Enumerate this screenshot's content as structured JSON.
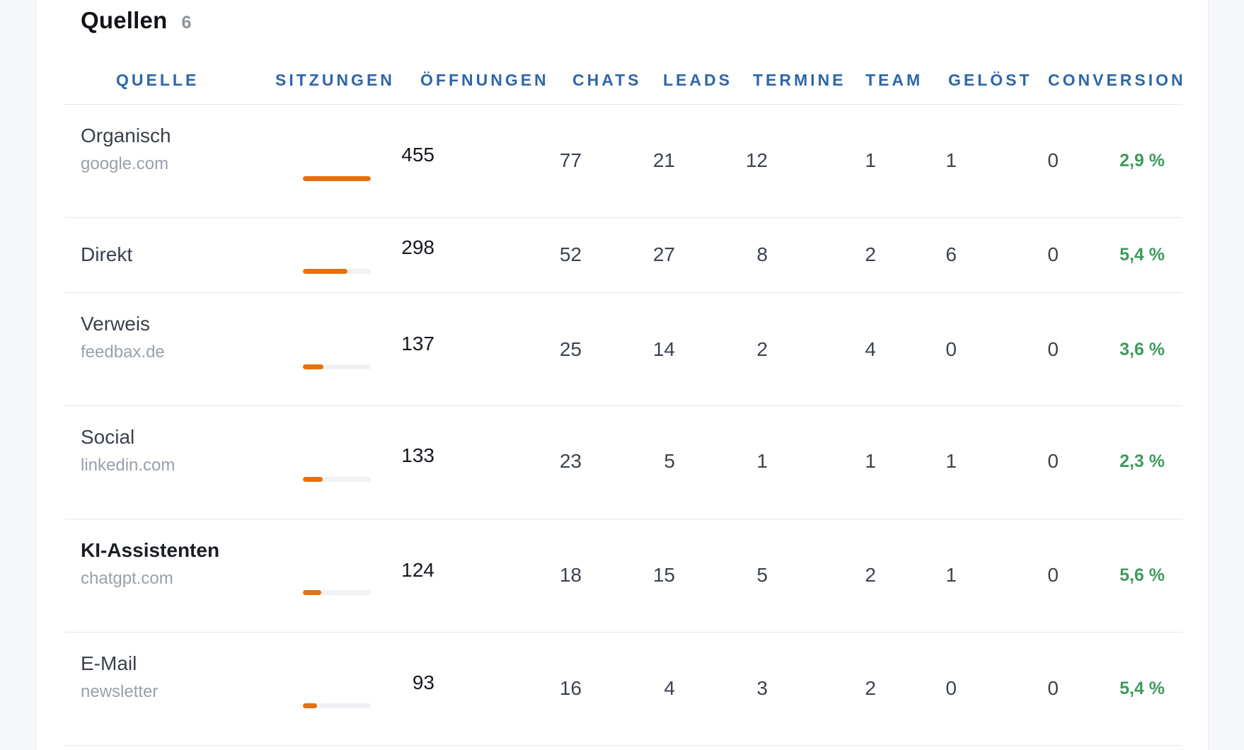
{
  "section": {
    "title": "Quellen",
    "count": "6"
  },
  "columns": [
    "QUELLE",
    "SITZUNGEN",
    "ÖFFNUNGEN",
    "CHATS",
    "LEADS",
    "TERMINE",
    "TEAM",
    "GELÖST",
    "CONVERSION"
  ],
  "colors": {
    "header": "#2f66a8",
    "bar": "#e5700d",
    "conversion": "#3f9a5e"
  },
  "rows": [
    {
      "name": "Organisch",
      "sub": "google.com",
      "sessions": "455",
      "session_share": 1.0,
      "oeffnungen": "77",
      "chats": "21",
      "leads": "12",
      "termine": "1",
      "team": "1",
      "geloest": "0",
      "conversion": "2,9 %",
      "bold": false
    },
    {
      "name": "Direkt",
      "sub": "",
      "sessions": "298",
      "session_share": 0.655,
      "oeffnungen": "52",
      "chats": "27",
      "leads": "8",
      "termine": "2",
      "team": "6",
      "geloest": "0",
      "conversion": "5,4 %",
      "bold": false
    },
    {
      "name": "Verweis",
      "sub": "feedbax.de",
      "sessions": "137",
      "session_share": 0.301,
      "oeffnungen": "25",
      "chats": "14",
      "leads": "2",
      "termine": "4",
      "team": "0",
      "geloest": "0",
      "conversion": "3,6 %",
      "bold": false
    },
    {
      "name": "Social",
      "sub": "linkedin.com",
      "sessions": "133",
      "session_share": 0.292,
      "oeffnungen": "23",
      "chats": "5",
      "leads": "1",
      "termine": "1",
      "team": "1",
      "geloest": "0",
      "conversion": "2,3 %",
      "bold": false
    },
    {
      "name": "KI-Assistenten",
      "sub": "chatgpt.com",
      "sessions": "124",
      "session_share": 0.273,
      "oeffnungen": "18",
      "chats": "15",
      "leads": "5",
      "termine": "2",
      "team": "1",
      "geloest": "0",
      "conversion": "5,6 %",
      "bold": true
    },
    {
      "name": "E-Mail",
      "sub": "newsletter",
      "sessions": "93",
      "session_share": 0.204,
      "oeffnungen": "16",
      "chats": "4",
      "leads": "3",
      "termine": "2",
      "team": "0",
      "geloest": "0",
      "conversion": "5,4 %",
      "bold": false
    }
  ]
}
